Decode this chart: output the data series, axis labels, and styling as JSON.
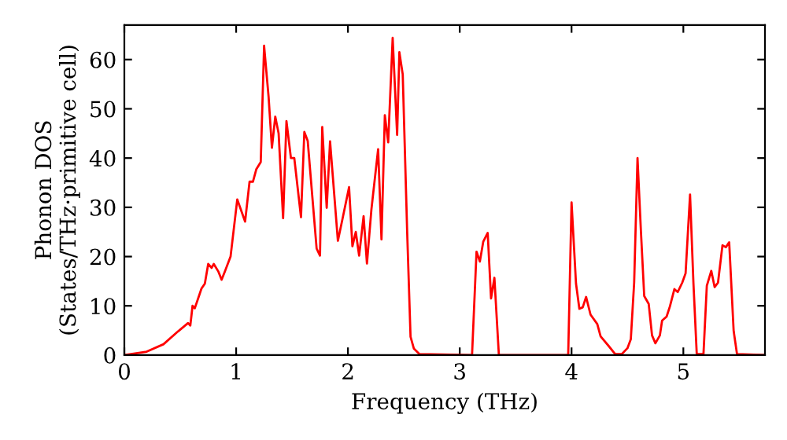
{
  "chart_data": {
    "type": "line",
    "xlabel": "Frequency (THz)",
    "ylabel": "Phonon DOS\n(States/THz·primitive cell)",
    "xlim": [
      0,
      5.73
    ],
    "ylim": [
      0,
      67
    ],
    "xticks": [
      0,
      1,
      2,
      3,
      4,
      5
    ],
    "yticks": [
      0,
      10,
      20,
      30,
      40,
      50,
      60
    ],
    "grid": false,
    "legend": false,
    "marker": "none",
    "line_style": "solid",
    "series": [
      {
        "color": "#ff0000",
        "x": [
          0,
          0.2,
          0.35,
          0.48,
          0.57,
          0.59,
          0.61,
          0.63,
          0.69,
          0.72,
          0.75,
          0.78,
          0.8,
          0.84,
          0.87,
          0.9,
          0.95,
          1.01,
          1.08,
          1.12,
          1.15,
          1.18,
          1.22,
          1.25,
          1.29,
          1.32,
          1.35,
          1.38,
          1.42,
          1.45,
          1.49,
          1.52,
          1.58,
          1.61,
          1.64,
          1.72,
          1.75,
          1.77,
          1.81,
          1.84,
          1.91,
          1.95,
          2.01,
          2.04,
          2.07,
          2.1,
          2.14,
          2.17,
          2.21,
          2.27,
          2.3,
          2.33,
          2.36,
          2.4,
          2.44,
          2.46,
          2.49,
          2.53,
          2.56,
          2.59,
          2.64,
          3.11,
          3.15,
          3.18,
          3.21,
          3.25,
          3.28,
          3.31,
          3.35,
          3.97,
          4.0,
          4.04,
          4.07,
          4.1,
          4.13,
          4.17,
          4.23,
          4.26,
          4.33,
          4.39,
          4.45,
          4.5,
          4.53,
          4.56,
          4.59,
          4.62,
          4.65,
          4.69,
          4.72,
          4.75,
          4.79,
          4.81,
          4.85,
          4.88,
          4.92,
          4.95,
          4.99,
          5.02,
          5.06,
          5.09,
          5.12,
          5.18,
          5.21,
          5.25,
          5.28,
          5.31,
          5.35,
          5.38,
          5.41,
          5.45,
          5.48,
          5.73
        ],
        "values": [
          0,
          0.7,
          2.2,
          4.8,
          6.5,
          6,
          10,
          9.5,
          13.5,
          14.5,
          18.5,
          17.7,
          18.5,
          17,
          15.3,
          17,
          20,
          31.6,
          27.1,
          35.2,
          35.2,
          37.7,
          39.2,
          62.8,
          52.5,
          42.1,
          48.4,
          45,
          27.8,
          47.5,
          40,
          40,
          28,
          45.3,
          43.5,
          21.6,
          20.2,
          46.3,
          29.9,
          43.4,
          23.2,
          27.5,
          34.1,
          22.1,
          25,
          20.2,
          28.2,
          18.6,
          29.6,
          41.8,
          23.5,
          48.7,
          43.2,
          64.4,
          44.7,
          61.5,
          57,
          24.8,
          3.7,
          1.3,
          0.2,
          0,
          21,
          19,
          23,
          24.8,
          11.5,
          15.7,
          0,
          0,
          31,
          14.5,
          9.4,
          9.7,
          11.8,
          8.2,
          6.3,
          3.8,
          1.9,
          0.2,
          0.2,
          1.4,
          3.2,
          14.7,
          40,
          25.4,
          12,
          10.4,
          4,
          2.4,
          4,
          7,
          7.8,
          9.9,
          13.4,
          12.8,
          14.7,
          16.6,
          32.6,
          14.7,
          0.2,
          0.2,
          14.1,
          17.1,
          13.8,
          14.7,
          22.3,
          21.9,
          22.9,
          4.9,
          0.2,
          0
        ]
      }
    ]
  }
}
